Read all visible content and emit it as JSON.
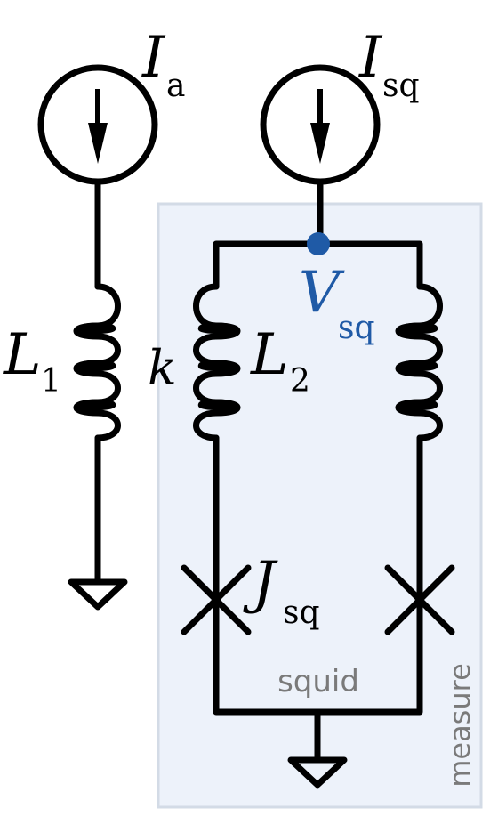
{
  "sources": {
    "left": {
      "symbol": "I",
      "subscript": "a"
    },
    "right": {
      "symbol": "I",
      "subscript": "sq"
    }
  },
  "inductors": {
    "l1": {
      "symbol": "L",
      "subscript": "1"
    },
    "l2": {
      "symbol": "L",
      "subscript": "2"
    },
    "coupling": "k"
  },
  "node": {
    "symbol": "V",
    "subscript": "sq"
  },
  "junction": {
    "symbol": "J",
    "subscript": "sq"
  },
  "boxes": {
    "squid_label": "squid",
    "measure_label": "measure"
  },
  "colors": {
    "wire": "#000000",
    "node": "#1f5aa6",
    "box_fill": "#edf2fa",
    "box_stroke": "#d3dbe6",
    "label_gray": "#7a7a7a"
  }
}
